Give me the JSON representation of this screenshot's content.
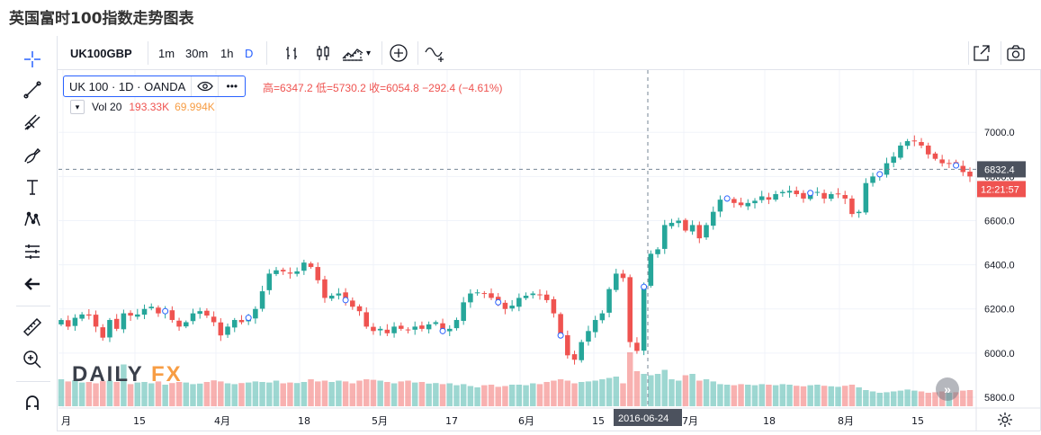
{
  "page": {
    "title": "英国富时100指数走势图表"
  },
  "toolbar": {
    "symbol": "UK100GBP",
    "intervals": [
      "1m",
      "30m",
      "1h",
      "D"
    ],
    "active_interval": "D"
  },
  "legend": {
    "name": "UK 100 · 1D · OANDA",
    "eye_icon": "eye-icon",
    "more": "•••",
    "ohlc_text": "高=6347.2  低=5730.2  收=6054.8  −292.4 (−4.61%)",
    "volume_label": "Vol 20",
    "volume_value1": "193.33K",
    "volume_value2": "69.994K"
  },
  "watermark": {
    "part1": "DAILY",
    "part2": "FX"
  },
  "price_axis": {
    "ticks": [
      "7000.0",
      "6800.0",
      "6600.0",
      "6400.0",
      "6200.0",
      "6000.0",
      "5800.0"
    ],
    "current_price": "6832.4",
    "countdown": "12:21:57"
  },
  "time_axis": {
    "labels": [
      "月",
      "15",
      "4月",
      "18",
      "5月",
      "17",
      "6月",
      "15",
      "7月",
      "18",
      "8月",
      "15"
    ],
    "crosshair_date": "2016-06-24"
  },
  "colors": {
    "up": "#26a69a",
    "down": "#ef5350",
    "grid": "#f0f3fa",
    "axis": "#131722",
    "accent": "#2962ff"
  },
  "chart_data": {
    "type": "candlestick",
    "title": "英国富时100指数走势图表",
    "symbol": "UK100GBP",
    "ylim": [
      5700,
      7100
    ],
    "y_ticks": [
      5800,
      6000,
      6200,
      6400,
      6600,
      6800,
      7000
    ],
    "crosshair_price": 6832.4,
    "closes": [
      6150,
      6120,
      6160,
      6175,
      6170,
      6120,
      6070,
      6150,
      6110,
      6180,
      6170,
      6175,
      6200,
      6210,
      6180,
      6190,
      6150,
      6120,
      6140,
      6180,
      6190,
      6170,
      6140,
      6080,
      6120,
      6150,
      6140,
      6160,
      6200,
      6280,
      6360,
      6375,
      6370,
      6360,
      6370,
      6410,
      6390,
      6330,
      6250,
      6260,
      6270,
      6240,
      6210,
      6190,
      6120,
      6100,
      6110,
      6090,
      6120,
      6110,
      6105,
      6120,
      6110,
      6130,
      6140,
      6100,
      6110,
      6150,
      6230,
      6270,
      6275,
      6270,
      6250,
      6230,
      6200,
      6215,
      6250,
      6260,
      6270,
      6265,
      6240,
      6180,
      6080,
      5990,
      5970,
      6050,
      6100,
      6150,
      6180,
      6290,
      6360,
      6340,
      6050,
      6010,
      6300,
      6450,
      6470,
      6580,
      6590,
      6600,
      6555,
      6580,
      6520,
      6580,
      6640,
      6695,
      6700,
      6680,
      6670,
      6680,
      6690,
      6710,
      6695,
      6720,
      6730,
      6735,
      6720,
      6700,
      6725,
      6730,
      6700,
      6720,
      6720,
      6700,
      6630,
      6640,
      6770,
      6800,
      6810,
      6860,
      6890,
      6940,
      6960,
      6960,
      6940,
      6900,
      6880,
      6860,
      6860,
      6850,
      6820,
      6800
    ],
    "volumes": [
      1.0,
      0.92,
      0.96,
      0.88,
      0.9,
      0.85,
      0.93,
      0.95,
      0.9,
      1.55,
      0.82,
      0.88,
      0.9,
      0.85,
      0.92,
      0.8,
      0.86,
      0.9,
      0.88,
      0.82,
      0.84,
      0.9,
      0.96,
      0.92,
      0.85,
      0.82,
      0.86,
      0.88,
      0.92,
      0.9,
      0.88,
      0.95,
      0.85,
      0.88,
      0.86,
      0.9,
      1.0,
      0.92,
      0.95,
      0.9,
      0.95,
      0.92,
      0.85,
      0.95,
      1.0,
      0.98,
      0.95,
      0.9,
      0.85,
      0.92,
      0.95,
      0.88,
      0.9,
      0.84,
      0.86,
      0.82,
      0.85,
      0.78,
      0.82,
      0.75,
      0.7,
      0.78,
      0.8,
      0.72,
      0.75,
      0.8,
      0.8,
      0.78,
      0.85,
      0.82,
      0.9,
      0.95,
      1.0,
      0.95,
      0.85,
      0.9,
      0.92,
      0.95,
      1.0,
      1.05,
      1.1,
      0.85,
      2.0,
      1.3,
      1.2,
      1.15,
      1.2,
      1.35,
      1.0,
      0.95,
      1.15,
      1.2,
      0.95,
      1.0,
      0.92,
      0.82,
      0.8,
      0.78,
      0.82,
      0.8,
      0.78,
      0.82,
      0.8,
      0.78,
      0.82,
      0.8,
      0.76,
      0.74,
      0.78,
      0.8,
      0.76,
      0.74,
      0.72,
      0.76,
      0.8,
      0.7,
      0.6,
      0.55,
      0.5,
      0.52,
      0.55,
      0.58,
      0.62,
      0.58,
      0.55,
      0.5,
      0.52,
      0.55,
      0.5,
      0.52,
      0.58,
      0.6
    ]
  }
}
